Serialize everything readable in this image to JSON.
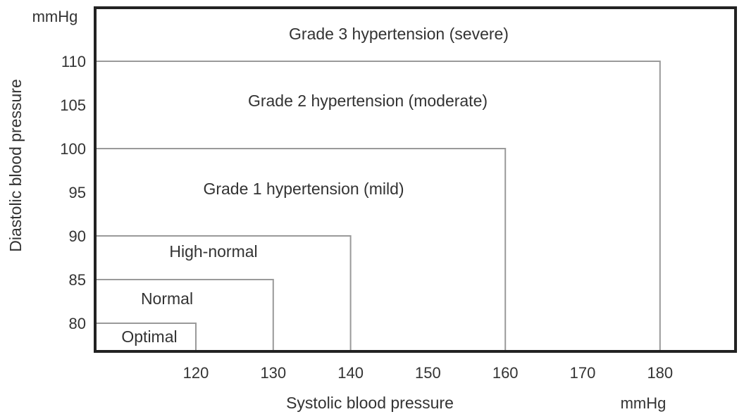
{
  "chart_data": {
    "type": "area",
    "title": "",
    "xlabel": "Systolic blood pressure",
    "ylabel": "Diastolic blood pressure",
    "x_unit": "mmHg",
    "y_unit": "mmHg",
    "xlim": [
      111,
      188
    ],
    "ylim": [
      77,
      113
    ],
    "x_ticks": [
      120,
      130,
      140,
      150,
      160,
      170,
      180
    ],
    "y_ticks": [
      80,
      85,
      90,
      95,
      100,
      105,
      110
    ],
    "grid": false,
    "legend": "none",
    "categories": [
      {
        "name": "Optimal",
        "systolic_below": 120,
        "diastolic_below": 80
      },
      {
        "name": "Normal",
        "systolic_below": 130,
        "diastolic_below": 85
      },
      {
        "name": "High-normal",
        "systolic_below": 140,
        "diastolic_below": 90
      },
      {
        "name": "Grade 1 hypertension (mild)",
        "systolic_below": 160,
        "diastolic_below": 100
      },
      {
        "name": "Grade 2 hypertension (moderate)",
        "systolic_below": 180,
        "diastolic_below": 110
      },
      {
        "name": "Grade 3 hypertension (severe)",
        "systolic_below": null,
        "diastolic_below": null
      }
    ],
    "colors": {
      "frame": "#222222",
      "boundary": "#9a9a9a",
      "text": "#333333"
    }
  }
}
